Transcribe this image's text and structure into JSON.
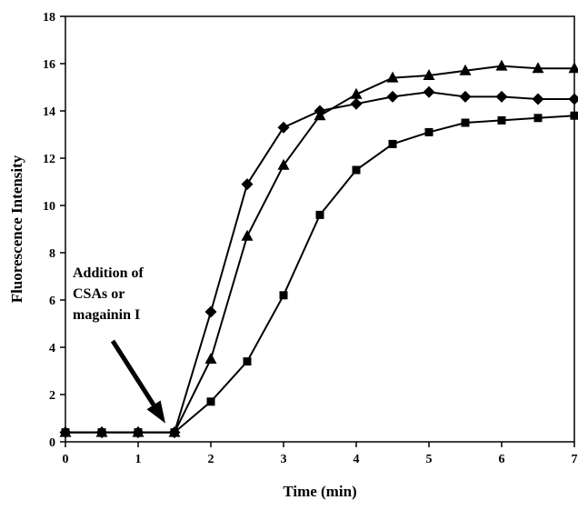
{
  "chart_data": {
    "type": "line",
    "title": "",
    "xlabel": "Time (min)",
    "ylabel": "Fluorescence Intensity",
    "xlim": [
      0,
      7
    ],
    "ylim": [
      0,
      18
    ],
    "xticks": [
      0,
      1,
      2,
      3,
      4,
      5,
      6,
      7
    ],
    "yticks": [
      0,
      2,
      4,
      6,
      8,
      10,
      12,
      14,
      16,
      18
    ],
    "grid": false,
    "legend": "none",
    "annotation": {
      "lines": [
        "Addition of",
        "CSAs or",
        "magainin I"
      ],
      "arrow_target": {
        "x": 1.5,
        "y": 0.4
      }
    },
    "series": [
      {
        "marker": "diamond",
        "color": "#000000",
        "x": [
          0,
          0.5,
          1,
          1.5,
          2,
          2.5,
          3,
          3.5,
          4,
          4.5,
          5,
          5.5,
          6,
          6.5,
          7
        ],
        "y": [
          0.4,
          0.4,
          0.4,
          0.4,
          5.5,
          10.9,
          13.3,
          14.0,
          14.3,
          14.6,
          14.8,
          14.6,
          14.6,
          14.5,
          14.5
        ]
      },
      {
        "marker": "triangle",
        "color": "#000000",
        "x": [
          0,
          0.5,
          1,
          1.5,
          2,
          2.5,
          3,
          3.5,
          4,
          4.5,
          5,
          5.5,
          6,
          6.5,
          7
        ],
        "y": [
          0.4,
          0.4,
          0.4,
          0.4,
          3.5,
          8.7,
          11.7,
          13.8,
          14.7,
          15.4,
          15.5,
          15.7,
          15.9,
          15.8,
          15.8
        ]
      },
      {
        "marker": "square",
        "color": "#000000",
        "x": [
          0,
          0.5,
          1,
          1.5,
          2,
          2.5,
          3,
          3.5,
          4,
          4.5,
          5,
          5.5,
          6,
          6.5,
          7
        ],
        "y": [
          0.4,
          0.4,
          0.4,
          0.4,
          1.7,
          3.4,
          6.2,
          9.6,
          11.5,
          12.6,
          13.1,
          13.5,
          13.6,
          13.7,
          13.8
        ]
      }
    ]
  }
}
